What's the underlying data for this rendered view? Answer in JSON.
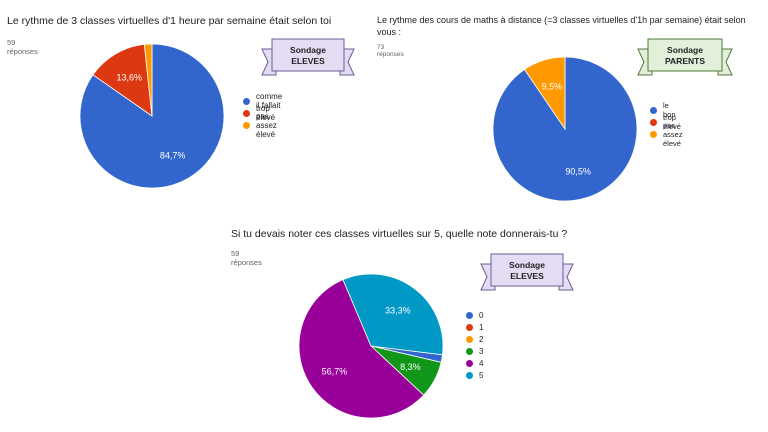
{
  "chart_data": [
    {
      "type": "pie",
      "title": "Le rythme de 3 classes virtuelles d'1 heure par semaine était selon toi",
      "subtitle": "59 réponses",
      "categories": [
        "comme il fallait",
        "trop élevé",
        "pas assez élevé"
      ],
      "values": [
        84.7,
        13.6,
        1.7
      ],
      "value_labels": [
        "84,7%",
        "13,6%",
        ""
      ],
      "colors": [
        "#3366cc",
        "#dc3912",
        "#ff9900"
      ],
      "legend_position": "right",
      "banner": {
        "line1": "Sondage",
        "line2": "ELEVES",
        "color": "#e4dcf2",
        "edge": "#6b5b95"
      }
    },
    {
      "type": "pie",
      "title": "Le rythme des cours de maths à distance (=3 classes virtuelles d'1h par semaine) était selon vous :",
      "subtitle": "73 réponses",
      "categories": [
        "le bon",
        "trop élevé",
        "pas assez élevé"
      ],
      "values": [
        90.5,
        0,
        9.5
      ],
      "value_labels": [
        "90,5%",
        "",
        "9,5%"
      ],
      "colors": [
        "#3366cc",
        "#dc3912",
        "#ff9900"
      ],
      "legend_position": "right",
      "banner": {
        "line1": "Sondage",
        "line2": "PARENTS",
        "color": "#e2f0d9",
        "edge": "#4e7a3a"
      }
    },
    {
      "type": "pie",
      "title": "Si tu devais noter ces classes virtuelles sur 5, quelle note donnerais-tu ?",
      "subtitle": "59 réponses",
      "categories": [
        "0",
        "1",
        "2",
        "3",
        "4",
        "5"
      ],
      "values": [
        1.7,
        0,
        0,
        8.3,
        56.7,
        33.3
      ],
      "value_labels": [
        "",
        "",
        "",
        "8,3%",
        "56,7%",
        "33,3%"
      ],
      "colors": [
        "#3366cc",
        "#dc3912",
        "#ff9900",
        "#109618",
        "#990099",
        "#0099c6"
      ],
      "legend_position": "right",
      "banner": {
        "line1": "Sondage",
        "line2": "ELEVES",
        "color": "#e4dcf2",
        "edge": "#6b5b95"
      }
    }
  ]
}
